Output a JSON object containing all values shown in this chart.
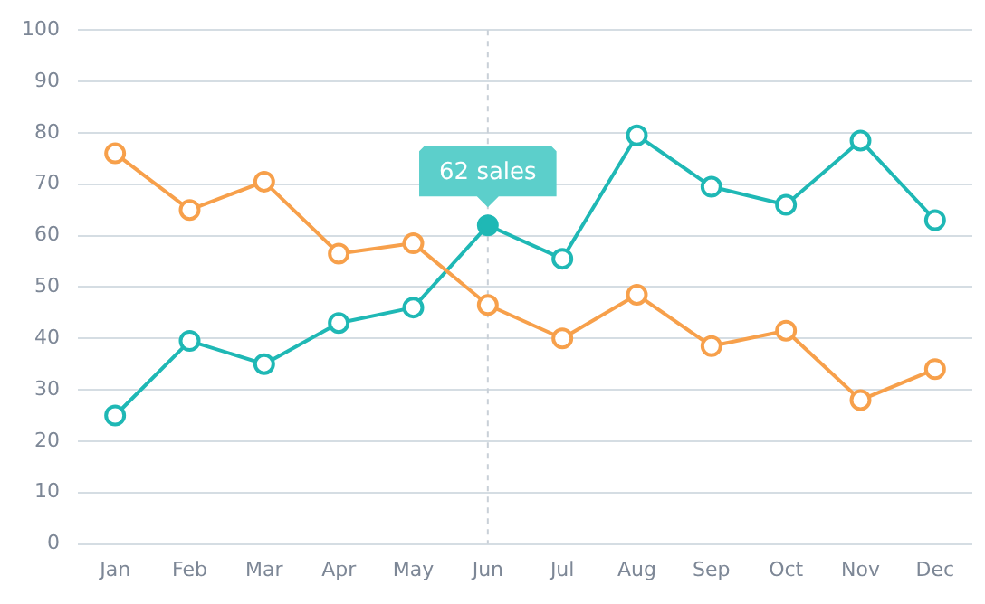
{
  "chart_data": {
    "type": "line",
    "categories": [
      "Jan",
      "Feb",
      "Mar",
      "Apr",
      "May",
      "Jun",
      "Jul",
      "Aug",
      "Sep",
      "Oct",
      "Nov",
      "Dec"
    ],
    "series": [
      {
        "color": "#f7a04b",
        "values": [
          76,
          65,
          70.5,
          56.5,
          58.5,
          46.5,
          40,
          48.5,
          38.5,
          41.5,
          28,
          34
        ]
      },
      {
        "color": "#1fb8b5",
        "values": [
          25,
          39.5,
          35,
          43,
          46,
          62,
          55.5,
          79.5,
          69.5,
          66,
          78.5,
          63
        ]
      }
    ],
    "ylim": [
      0,
      100
    ],
    "yticks": [
      0,
      10,
      20,
      30,
      40,
      50,
      60,
      70,
      80,
      90,
      100
    ],
    "grid": "y",
    "legend": false,
    "marker": "circle",
    "line_style": "solid",
    "ref_lines": [
      {
        "axis": "x",
        "value": "Jun",
        "color": "#c9d0d8",
        "line_style": "dotted"
      }
    ],
    "annotations": [
      {
        "text": "62 sales",
        "x": "Jun",
        "y": 62
      }
    ]
  }
}
